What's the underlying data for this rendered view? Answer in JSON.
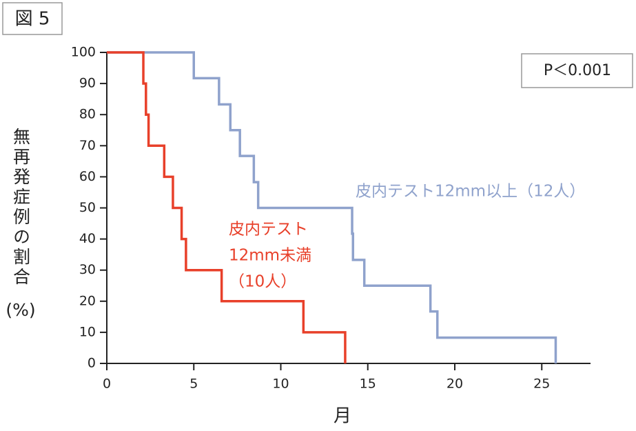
{
  "chart_data": {
    "type": "step",
    "figure_label": "図 5",
    "annotation": "P＜0.001",
    "ylabel": "無再発症例の割合",
    "ylabel_unit": "(%)",
    "xlabel": "月",
    "xlim": [
      0,
      28
    ],
    "xticks": [
      0,
      5,
      10,
      15,
      20,
      25
    ],
    "ylim": [
      0,
      100
    ],
    "yticks": [
      0,
      10,
      20,
      30,
      40,
      50,
      60,
      70,
      80,
      90,
      100
    ],
    "series": [
      {
        "name": "皮内テスト12mm以上（12人）",
        "color": "#8fa2cc",
        "x": [
          0,
          5.0,
          6.45,
          7.1,
          7.65,
          8.45,
          8.7,
          14.1,
          14.15,
          14.8,
          18.6,
          19.0,
          25.8
        ],
        "values": [
          100,
          91.7,
          83.3,
          75,
          66.7,
          58.3,
          50,
          41.7,
          33.3,
          25,
          16.7,
          8.3,
          0
        ]
      },
      {
        "name": [
          "皮内テスト",
          "12mm未満",
          "（10人）"
        ],
        "color": "#e8402a",
        "x": [
          0,
          2.1,
          2.25,
          2.4,
          3.3,
          3.8,
          4.3,
          4.55,
          6.6,
          11.3,
          13.7
        ],
        "values": [
          100,
          90,
          80,
          70,
          60,
          50,
          40,
          30,
          20,
          10,
          0
        ]
      }
    ]
  }
}
